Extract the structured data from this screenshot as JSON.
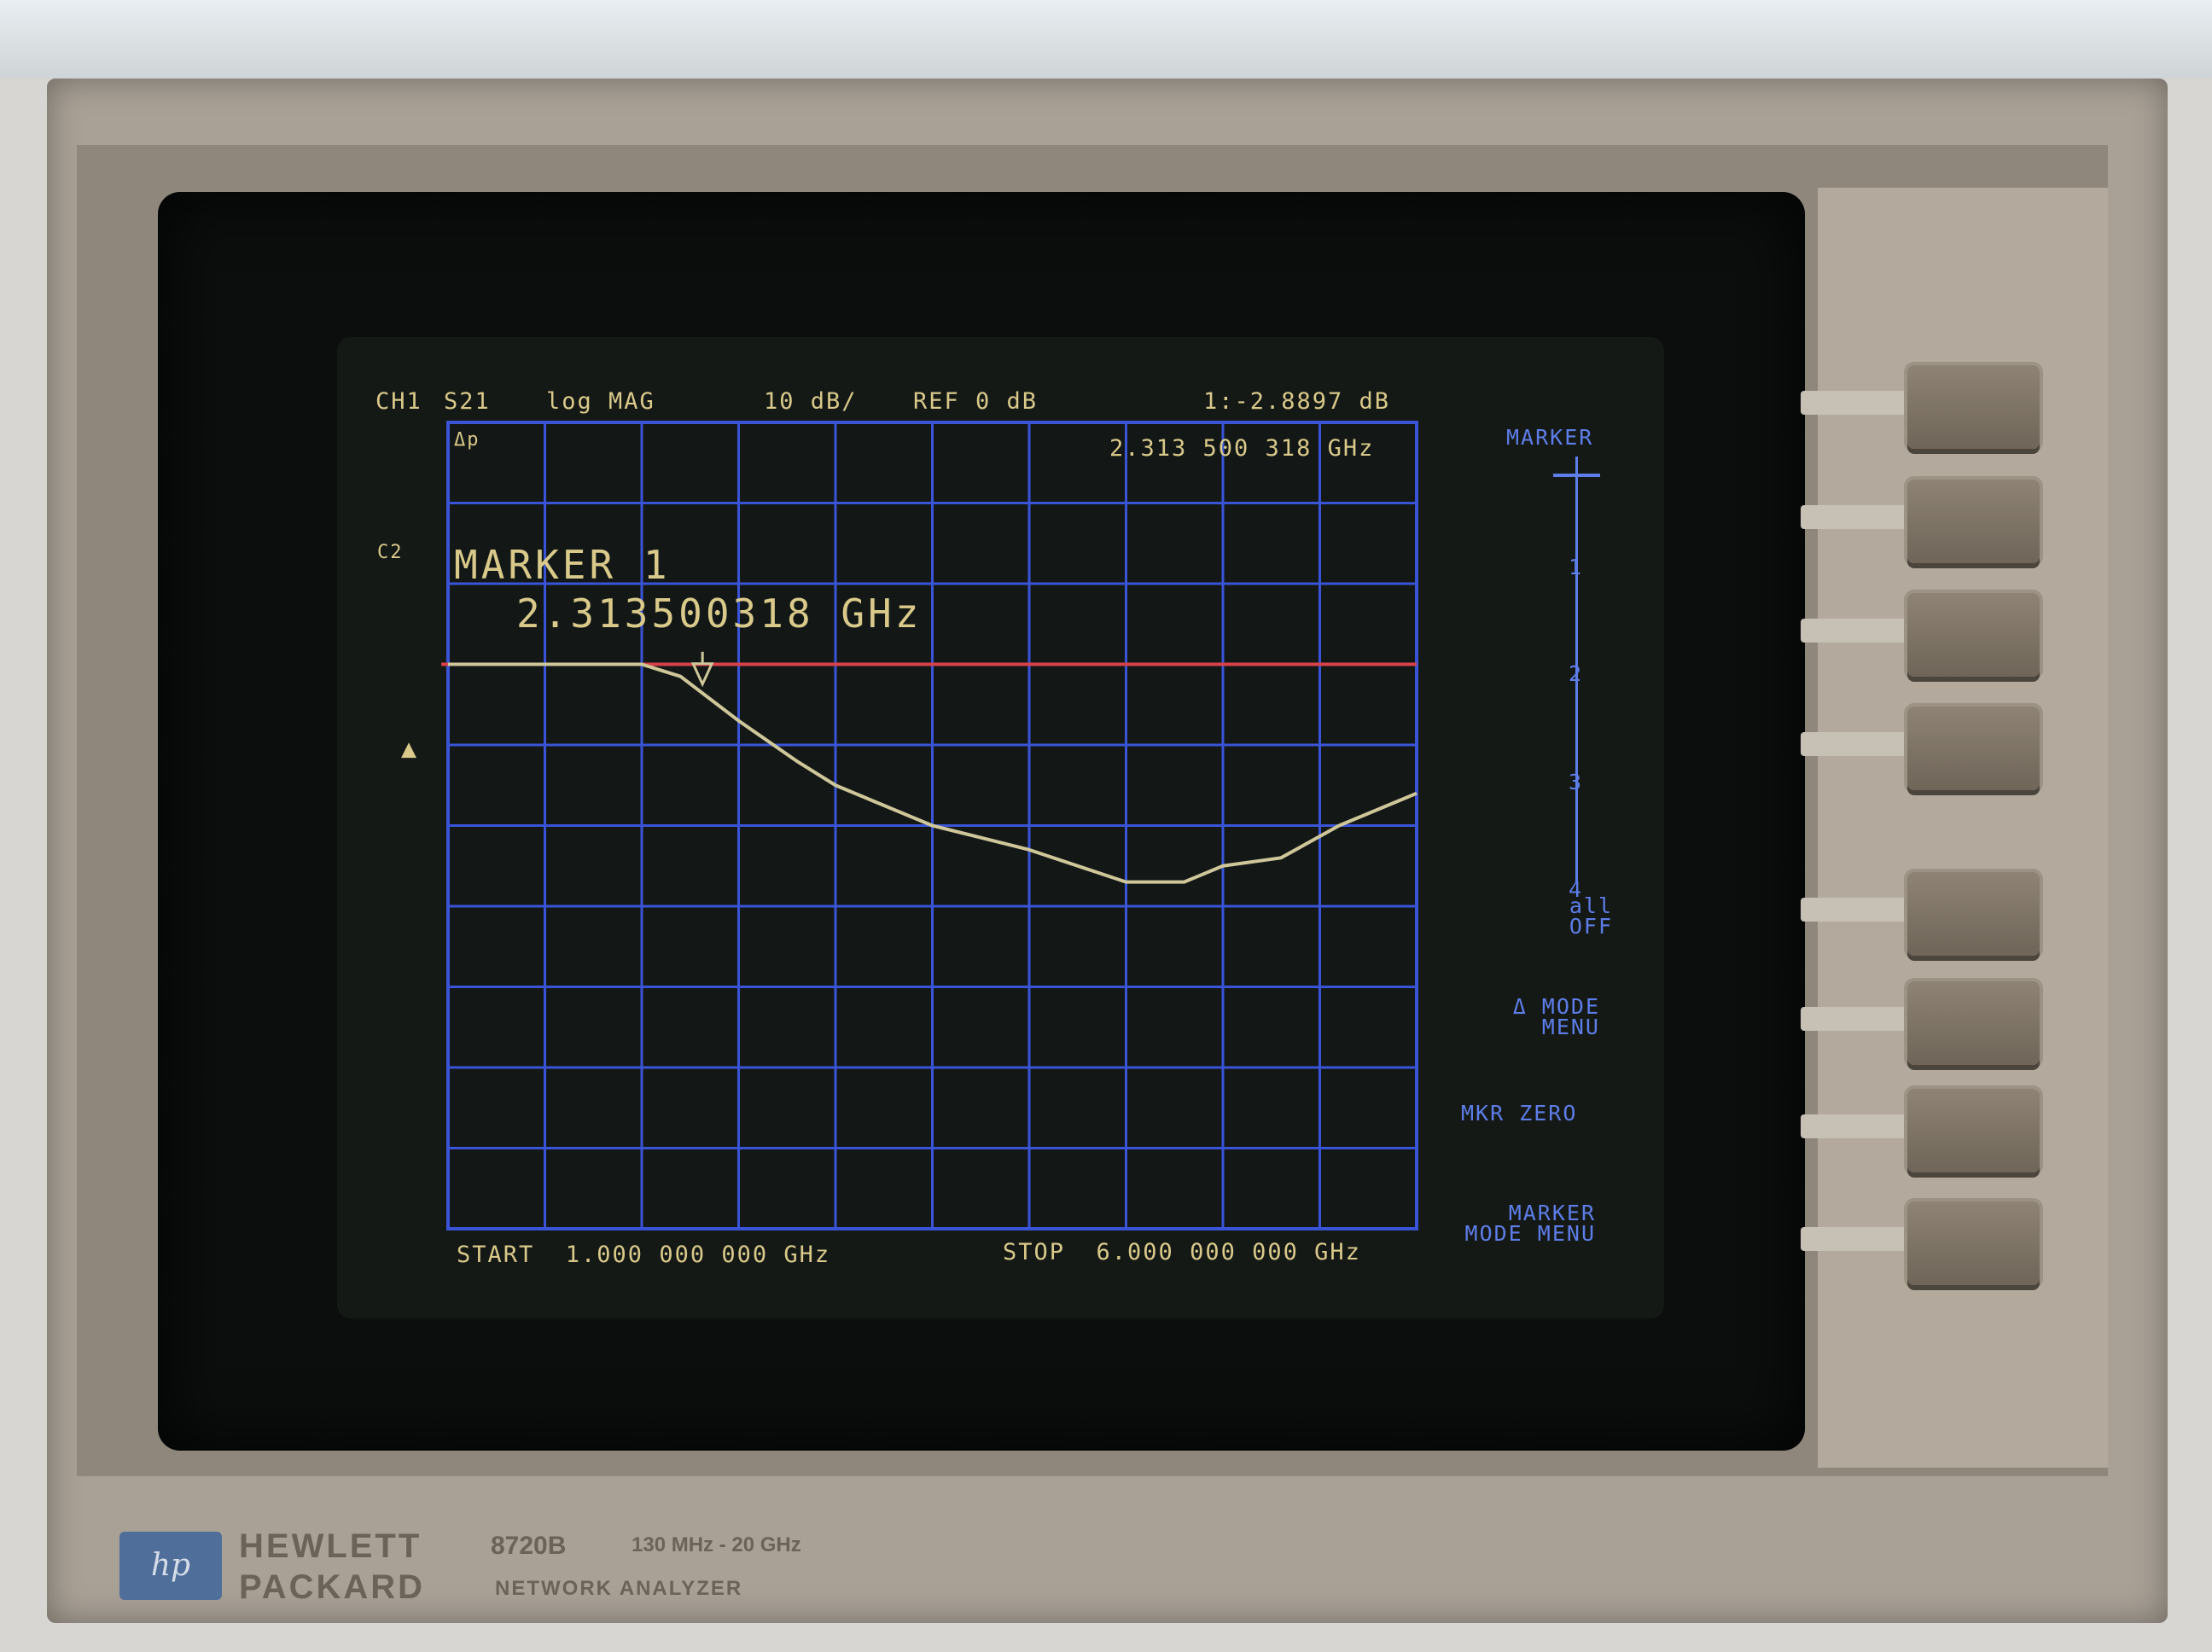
{
  "header": {
    "channel": "CH1",
    "param": "S21",
    "format": "log MAG",
    "scale": "10 dB/",
    "ref": "REF 0 dB",
    "marker_readout": "1:-2.8897 dB",
    "marker_freq_readout": "2.313 500 318 GHz"
  },
  "grid_flags": {
    "delta": "Δp",
    "cor": "C2"
  },
  "marker_box": {
    "title": "MARKER 1",
    "freq": "2.313500318 GHz"
  },
  "footer": {
    "start": "START  1.000 000 000 GHz",
    "stop": "STOP  6.000 000 000 GHz"
  },
  "softkeys": {
    "title": "MARKER",
    "scale_items": [
      "1",
      "2",
      "3",
      "4"
    ],
    "all_off": "all OFF",
    "delta_mode": "Δ MODE MENU",
    "mkr_zero": "MKR ZERO",
    "marker_mode": "MARKER MODE MENU"
  },
  "brand": {
    "logo": "hp",
    "maker_line1": "HEWLETT",
    "maker_line2": "PACKARD",
    "model": "8720B",
    "range": "130 MHz - 20 GHz",
    "product": "NETWORK ANALYZER"
  },
  "colors": {
    "grid": "#3a54d8",
    "trace": "#cfc79a",
    "reference": "#d8404a",
    "text": "#d9c98a",
    "softkey_text": "#5d7de8"
  },
  "chart_data": {
    "type": "line",
    "title": "",
    "xlabel": "",
    "ylabel": "",
    "x_unit": "GHz",
    "y_unit": "dB",
    "xlim": [
      1.0,
      6.0
    ],
    "ylim": [
      -70,
      30
    ],
    "reference_line": 0,
    "marker": {
      "x": 2.3135,
      "y": -2.8897
    },
    "series": [
      {
        "x": [
          1.0,
          1.5,
          2.0,
          2.2,
          2.5,
          2.8,
          3.0,
          3.5,
          4.0,
          4.5,
          4.8,
          5.0,
          5.3,
          5.6,
          6.0
        ],
        "y": [
          0,
          0,
          0,
          -1.5,
          -7,
          -12,
          -15,
          -20,
          -23,
          -27,
          -27,
          -25,
          -24,
          -20,
          -16
        ]
      }
    ]
  }
}
